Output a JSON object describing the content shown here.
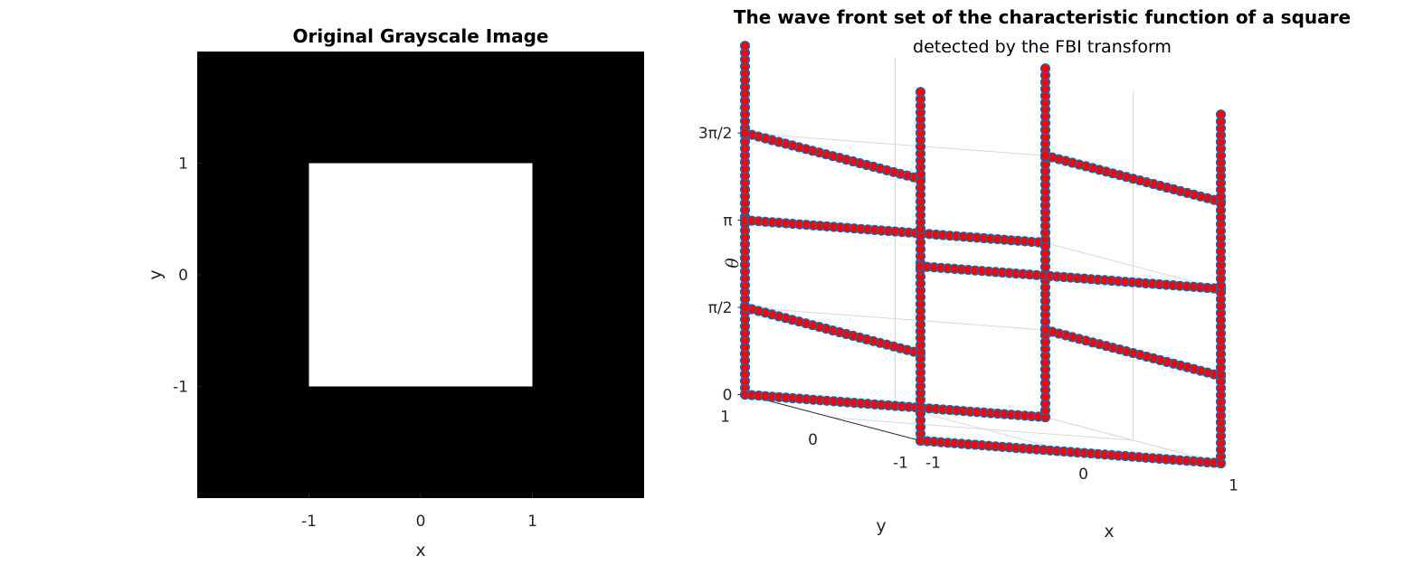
{
  "chart_data": [
    {
      "type": "heatmap",
      "title": "Original Grayscale Image",
      "xlabel": "x",
      "ylabel": "y",
      "xlim": [
        -2,
        2
      ],
      "ylim": [
        -2,
        2
      ],
      "xticks": [
        -1,
        0,
        1
      ],
      "yticks": [
        -1,
        0,
        1
      ],
      "xticklabels": [
        "-1",
        "0",
        "1"
      ],
      "yticklabels": [
        "-1",
        "0",
        "1"
      ],
      "colormap": "gray",
      "background_value": 0,
      "regions": [
        {
          "shape": "square",
          "x": [
            -1,
            1
          ],
          "y": [
            -1,
            1
          ],
          "value": 1
        }
      ],
      "colors": {
        "background": "#000000",
        "foreground": "#ffffff"
      }
    },
    {
      "type": "scatter",
      "projection": "3d",
      "title": "The wave front set of the characteristic function of a square",
      "subtitle": "detected by the FBI transform",
      "xlabel": "x",
      "ylabel": "y",
      "zlabel": "θ",
      "xlim": [
        -1,
        1
      ],
      "ylim": [
        -1,
        1
      ],
      "zlim": [
        0,
        6.283
      ],
      "xticklabels": [
        "-1",
        "0",
        "1"
      ],
      "yticklabels": [
        "-1",
        "0",
        "1"
      ],
      "zticklabels": [
        "0",
        "π/2",
        "π",
        "3π/2"
      ],
      "zticks": [
        0,
        1.5708,
        3.1416,
        4.7124
      ],
      "grid": true,
      "marker": {
        "shape": "circle",
        "face": "#ff0000",
        "edge": "#0072bd"
      },
      "segments": [
        {
          "from": [
            -1,
            1,
            0
          ],
          "to": [
            1,
            1,
            0
          ]
        },
        {
          "from": [
            -1,
            -1,
            0
          ],
          "to": [
            1,
            -1,
            0
          ]
        },
        {
          "from": [
            -1,
            1,
            3.1416
          ],
          "to": [
            1,
            1,
            3.1416
          ]
        },
        {
          "from": [
            -1,
            -1,
            3.1416
          ],
          "to": [
            1,
            -1,
            3.1416
          ]
        },
        {
          "from": [
            -1,
            -1,
            1.5708
          ],
          "to": [
            -1,
            1,
            1.5708
          ]
        },
        {
          "from": [
            1,
            -1,
            1.5708
          ],
          "to": [
            1,
            1,
            1.5708
          ]
        },
        {
          "from": [
            -1,
            -1,
            4.7124
          ],
          "to": [
            -1,
            1,
            4.7124
          ]
        },
        {
          "from": [
            1,
            -1,
            4.7124
          ],
          "to": [
            1,
            1,
            4.7124
          ]
        },
        {
          "from": [
            -1,
            -1,
            0
          ],
          "to": [
            -1,
            -1,
            6.283
          ]
        },
        {
          "from": [
            -1,
            1,
            0
          ],
          "to": [
            -1,
            1,
            6.283
          ]
        },
        {
          "from": [
            1,
            -1,
            0
          ],
          "to": [
            1,
            -1,
            6.283
          ]
        },
        {
          "from": [
            1,
            1,
            0
          ],
          "to": [
            1,
            1,
            6.283
          ]
        }
      ]
    }
  ]
}
